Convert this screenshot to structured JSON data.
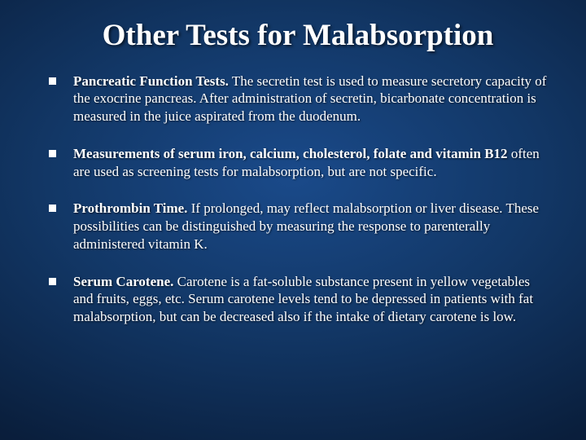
{
  "slide": {
    "title": "Other Tests for Malabsorption",
    "background": {
      "gradient_inner": "#1a4a8a",
      "gradient_mid": "#123766",
      "gradient_outer": "#0a1f3d",
      "gradient_edge": "#051025"
    },
    "title_color": "#ffffff",
    "text_color": "#ffffff",
    "bullet_marker_color": "#ffffff",
    "title_fontsize": 37,
    "body_fontsize": 17,
    "font_family": "Times New Roman",
    "bullets": [
      {
        "lead": "Pancreatic Function Tests.",
        "rest": " The secretin test is used to measure secretory capacity of the exocrine pancreas. After administration of secretin, bicarbonate concentration is measured in the juice aspirated from the duodenum."
      },
      {
        "lead": "Measurements of serum iron, calcium, cholesterol, folate and vitamin B12",
        "rest": " often are used as screening tests for malabsorption, but are not specific."
      },
      {
        "lead": "Prothrombin Time.",
        "rest": " If prolonged, may reflect malabsorption or liver disease. These possibilities can be distinguished by measuring the response to parenterally administered vitamin K."
      },
      {
        "lead": "Serum Carotene.",
        "rest": " Carotene is a fat-soluble substance present in yellow vegetables and fruits, eggs, etc. Serum carotene levels tend to be depressed in patients with fat malabsorption, but can be decreased also if the intake of dietary carotene is low."
      }
    ]
  }
}
